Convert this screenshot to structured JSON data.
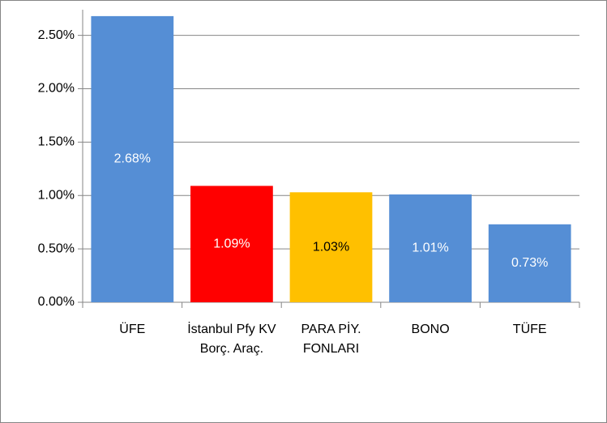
{
  "chart_data": {
    "type": "bar",
    "categories": [
      "ÜFE",
      "İstanbul Pfy KV Borç. Araç.",
      "PARA PİY. FONLARI",
      "BONO",
      "TÜFE"
    ],
    "values": [
      2.68,
      1.09,
      1.03,
      1.01,
      0.73
    ],
    "value_labels": [
      "2.68%",
      "1.09%",
      "1.03%",
      "1.01%",
      "0.73%"
    ],
    "colors": [
      "#558ed5",
      "#ff0000",
      "#ffc000",
      "#558ed5",
      "#558ed5"
    ],
    "value_label_colors": [
      "#ffffff",
      "#ffffff",
      "#000000",
      "#ffffff",
      "#ffffff"
    ],
    "ylim": [
      0,
      2.74
    ],
    "yticks": [
      {
        "value": 0,
        "label": "0.00%"
      },
      {
        "value": 0.5,
        "label": "0.50%"
      },
      {
        "value": 1,
        "label": "1.00%"
      },
      {
        "value": 1.5,
        "label": "1.50%"
      },
      {
        "value": 2,
        "label": "2.00%"
      },
      {
        "value": 2.5,
        "label": "2.50%"
      }
    ],
    "grid": true
  }
}
